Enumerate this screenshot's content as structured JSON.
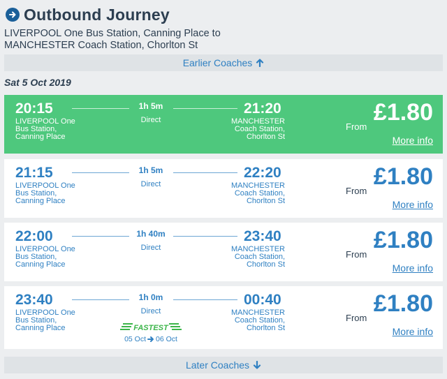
{
  "header": {
    "title": "Outbound Journey"
  },
  "route": {
    "line1": "LIVERPOOL One Bus Station, Canning Place to",
    "line2": "MANCHESTER Coach Station, Chorlton St"
  },
  "earlier_label": "Earlier Coaches",
  "later_label": "Later Coaches",
  "date_label": "Sat 5 Oct 2019",
  "journeys": [
    {
      "depart": "20:15",
      "arrive": "21:20",
      "duration": "1h 5m",
      "type": "Direct",
      "from_l1": "LIVERPOOL One",
      "from_l2": "Bus Station,",
      "from_l3": "Canning Place",
      "to_l1": "MANCHESTER",
      "to_l2": "Coach Station,",
      "to_l3": "Chorlton St",
      "from_label": "From",
      "price": "£1.80",
      "more_info": "More info"
    },
    {
      "depart": "21:15",
      "arrive": "22:20",
      "duration": "1h 5m",
      "type": "Direct",
      "from_l1": "LIVERPOOL One",
      "from_l2": "Bus Station,",
      "from_l3": "Canning Place",
      "to_l1": "MANCHESTER",
      "to_l2": "Coach Station,",
      "to_l3": "Chorlton St",
      "from_label": "From",
      "price": "£1.80",
      "more_info": "More info"
    },
    {
      "depart": "22:00",
      "arrive": "23:40",
      "duration": "1h 40m",
      "type": "Direct",
      "from_l1": "LIVERPOOL One",
      "from_l2": "Bus Station,",
      "from_l3": "Canning Place",
      "to_l1": "MANCHESTER",
      "to_l2": "Coach Station,",
      "to_l3": "Chorlton St",
      "from_label": "From",
      "price": "£1.80",
      "more_info": "More info"
    },
    {
      "depart": "23:40",
      "arrive": "00:40",
      "duration": "1h 0m",
      "type": "Direct",
      "from_l1": "LIVERPOOL One",
      "from_l2": "Bus Station,",
      "from_l3": "Canning Place",
      "to_l1": "MANCHESTER",
      "to_l2": "Coach Station,",
      "to_l3": "Chorlton St",
      "from_label": "From",
      "price": "£1.80",
      "more_info": "More info",
      "badge": "FASTEST",
      "date_from": "05 Oct",
      "date_to": "06 Oct"
    }
  ],
  "colors": {
    "selected": "#4ec87d",
    "accent": "#2f80c2",
    "text": "#2c3e50"
  }
}
